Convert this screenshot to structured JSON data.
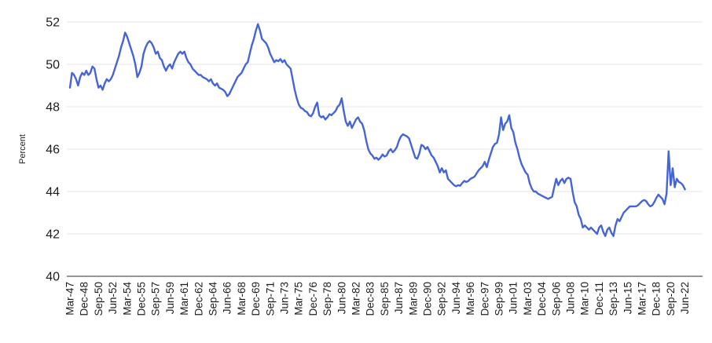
{
  "styles": {
    "line_color": "#4565d6",
    "grid_color": "#e6e6e6",
    "axis_color": "#757575",
    "text_color": "#1d1d1d",
    "background": "#ffffff"
  },
  "chart_data": {
    "type": "line",
    "title": "",
    "xlabel": "",
    "ylabel": "Percent",
    "ylim": [
      40,
      52
    ],
    "yticks": [
      40,
      42,
      44,
      46,
      48,
      50,
      52
    ],
    "grid": "horizontal",
    "legend": "none",
    "frequency": "quarterly",
    "x_start": "1947Q1",
    "x_end": "2022Q2",
    "tick_every": 7,
    "x_tick_labels": [
      "Mar-47",
      "Dec-48",
      "Sep-50",
      "Jun-52",
      "Mar-54",
      "Dec-55",
      "Sep-57",
      "Jun-59",
      "Mar-61",
      "Dec-62",
      "Sep-64",
      "Jun-66",
      "Mar-68",
      "Dec-69",
      "Sep-71",
      "Jun-73",
      "Mar-75",
      "Dec-76",
      "Sep-78",
      "Jun-80",
      "Mar-82",
      "Dec-83",
      "Sep-85",
      "Jun-87",
      "Mar-89",
      "Dec-90",
      "Sep-92",
      "Jun-94",
      "Mar-96",
      "Dec-97",
      "Sep-99",
      "Jun-01",
      "Mar-03",
      "Dec-04",
      "Sep-06",
      "Jun-08",
      "Mar-10",
      "Dec-11",
      "Sep-13",
      "Jun-15",
      "Mar-17",
      "Dec-18",
      "Sep-20",
      "Jun-22"
    ],
    "series": [
      {
        "name": "Percent",
        "color": "#4565d6",
        "values": [
          48.9,
          49.6,
          49.5,
          49.3,
          49.0,
          49.4,
          49.6,
          49.5,
          49.7,
          49.5,
          49.6,
          49.9,
          49.8,
          49.3,
          48.9,
          49.0,
          48.8,
          49.1,
          49.3,
          49.2,
          49.3,
          49.5,
          49.8,
          50.1,
          50.4,
          50.8,
          51.1,
          51.5,
          51.3,
          51.0,
          50.7,
          50.4,
          50.0,
          49.4,
          49.6,
          49.9,
          50.5,
          50.8,
          51.0,
          51.1,
          51.0,
          50.8,
          50.5,
          50.6,
          50.3,
          50.2,
          49.9,
          49.7,
          49.9,
          50.0,
          49.8,
          50.1,
          50.3,
          50.5,
          50.6,
          50.5,
          50.6,
          50.3,
          50.1,
          50.0,
          49.8,
          49.7,
          49.6,
          49.5,
          49.5,
          49.4,
          49.35,
          49.3,
          49.2,
          49.3,
          49.1,
          49.0,
          49.1,
          48.9,
          48.85,
          48.8,
          48.7,
          48.5,
          48.6,
          48.8,
          49.0,
          49.2,
          49.4,
          49.5,
          49.6,
          49.8,
          50.0,
          50.1,
          50.5,
          50.9,
          51.2,
          51.6,
          51.9,
          51.6,
          51.2,
          51.1,
          51.0,
          50.8,
          50.5,
          50.3,
          50.1,
          50.2,
          50.15,
          50.25,
          50.1,
          50.2,
          50.0,
          49.9,
          49.8,
          49.3,
          48.8,
          48.4,
          48.1,
          47.95,
          47.9,
          47.8,
          47.75,
          47.6,
          47.55,
          47.7,
          48.0,
          48.2,
          47.6,
          47.5,
          47.55,
          47.4,
          47.5,
          47.65,
          47.6,
          47.7,
          47.8,
          48.0,
          48.1,
          48.4,
          47.8,
          47.3,
          47.1,
          47.3,
          47.0,
          47.2,
          47.4,
          47.5,
          47.3,
          47.2,
          46.9,
          46.4,
          46.0,
          45.8,
          45.7,
          45.55,
          45.6,
          45.5,
          45.6,
          45.75,
          45.65,
          45.7,
          45.9,
          46.0,
          45.85,
          45.95,
          46.1,
          46.4,
          46.6,
          46.7,
          46.65,
          46.6,
          46.5,
          46.2,
          45.9,
          45.6,
          45.55,
          45.8,
          46.2,
          46.15,
          46.0,
          46.1,
          45.9,
          45.7,
          45.6,
          45.4,
          45.2,
          44.9,
          45.1,
          44.9,
          45.0,
          44.6,
          44.5,
          44.4,
          44.3,
          44.25,
          44.3,
          44.27,
          44.4,
          44.5,
          44.45,
          44.5,
          44.6,
          44.65,
          44.7,
          44.85,
          45.0,
          45.1,
          45.2,
          45.4,
          45.15,
          45.5,
          45.8,
          46.1,
          46.25,
          46.3,
          46.7,
          47.5,
          46.9,
          47.2,
          47.3,
          47.6,
          47.0,
          46.8,
          46.3,
          46.0,
          45.6,
          45.3,
          45.1,
          44.9,
          44.8,
          44.4,
          44.15,
          44.0,
          44.0,
          43.9,
          43.85,
          43.8,
          43.75,
          43.7,
          43.65,
          43.7,
          43.75,
          44.2,
          44.6,
          44.3,
          44.5,
          44.6,
          44.4,
          44.6,
          44.65,
          44.6,
          44.0,
          43.5,
          43.3,
          42.9,
          42.7,
          42.3,
          42.4,
          42.3,
          42.2,
          42.3,
          42.2,
          42.1,
          42.0,
          42.3,
          42.4,
          42.1,
          41.9,
          42.2,
          42.3,
          42.05,
          41.9,
          42.4,
          42.7,
          42.6,
          42.8,
          43.0,
          43.1,
          43.2,
          43.3,
          43.3,
          43.3,
          43.3,
          43.35,
          43.45,
          43.55,
          43.6,
          43.55,
          43.4,
          43.3,
          43.35,
          43.5,
          43.7,
          43.85,
          43.75,
          43.65,
          43.4,
          43.9,
          45.9,
          44.3,
          45.1,
          44.2,
          44.6,
          44.45,
          44.4,
          44.3,
          44.1
        ]
      }
    ]
  }
}
